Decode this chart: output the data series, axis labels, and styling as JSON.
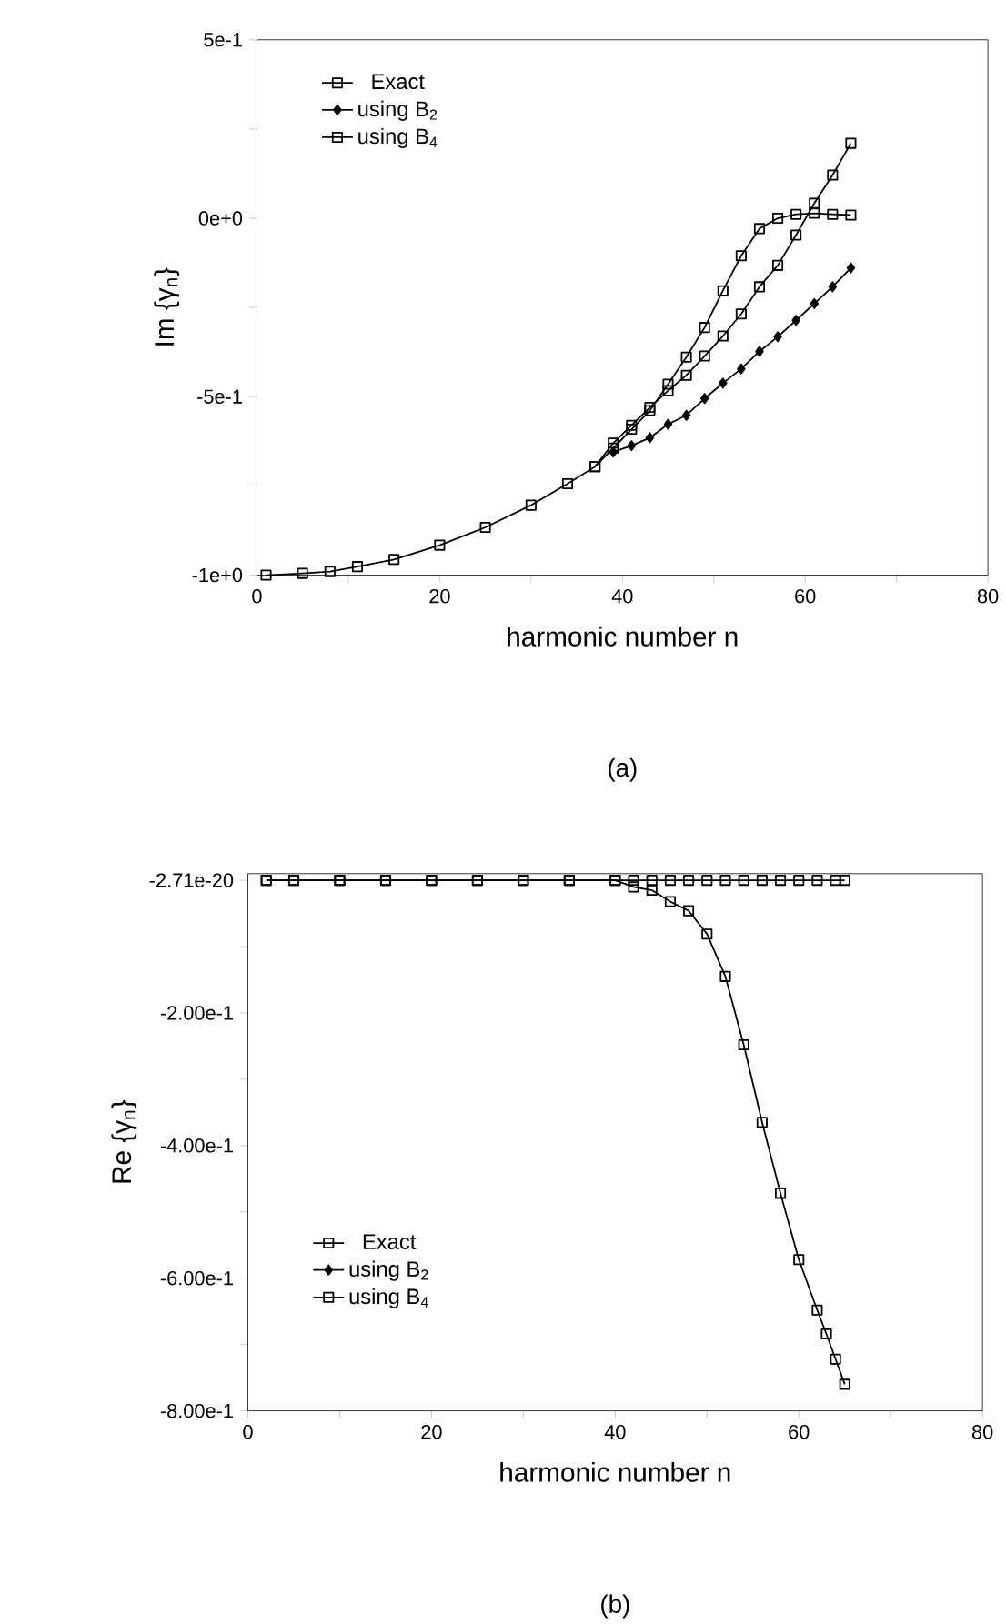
{
  "chart_data": [
    {
      "type": "line",
      "xlabel": "harmonic number n",
      "ylabel": "Im {γ$_{n}$}",
      "annotations": [
        "(a)"
      ],
      "xlim": [
        0,
        80
      ],
      "xticks": [
        0,
        {
          "value": 10,
          "label": null
        },
        20,
        {
          "value": 30,
          "label": null
        },
        40,
        {
          "value": 50,
          "label": null
        },
        60,
        {
          "value": 70,
          "label": null
        },
        80
      ],
      "ylim": [
        -1.0,
        0.5
      ],
      "yticks": [
        {
          "value": -1.0,
          "label": "-1e+0"
        },
        {
          "value": -0.75,
          "label": null
        },
        {
          "value": -0.5,
          "label": "-5e-1"
        },
        {
          "value": -0.25,
          "label": null
        },
        {
          "value": 0,
          "label": "0e+0"
        },
        {
          "value": 0.25,
          "label": null
        },
        {
          "value": 0.5,
          "label": "5e-1"
        }
      ],
      "legend": "top left",
      "series": [
        {
          "name": "Exact",
          "color": "#000000",
          "marker": "square",
          "x": [
            1,
            5,
            8,
            11,
            15,
            20,
            25,
            30,
            34,
            37,
            39,
            41,
            43,
            45,
            47,
            49,
            51,
            53,
            55,
            57,
            59,
            61,
            63,
            65
          ],
          "values": [
            -1.0,
            -0.995,
            -0.99,
            -0.976,
            -0.956,
            -0.916,
            -0.866,
            -0.804,
            -0.744,
            -0.696,
            -0.644,
            -0.591,
            -0.539,
            -0.465,
            -0.389,
            -0.306,
            -0.203,
            -0.105,
            -0.029,
            0.0,
            0.011,
            0.014,
            0.011,
            0.009
          ]
        },
        {
          "name": "using B$_{2}$",
          "color": "#000000",
          "marker": "diamond",
          "x": [
            39,
            41,
            43,
            45,
            47,
            49,
            51,
            53,
            55,
            57,
            59,
            61,
            63,
            65
          ],
          "values": [
            -0.655,
            -0.637,
            -0.615,
            -0.577,
            -0.552,
            -0.505,
            -0.462,
            -0.422,
            -0.373,
            -0.332,
            -0.286,
            -0.239,
            -0.192,
            -0.139
          ]
        },
        {
          "name": "using B$_{4}$",
          "color": "#000000",
          "marker": "square",
          "x": [
            37,
            39,
            41,
            43,
            45,
            47,
            49,
            51,
            53,
            55,
            57,
            59,
            61,
            63,
            65
          ],
          "values": [
            -0.696,
            -0.63,
            -0.58,
            -0.53,
            -0.483,
            -0.44,
            -0.386,
            -0.33,
            -0.268,
            -0.192,
            -0.132,
            -0.047,
            0.042,
            0.121,
            0.21
          ]
        }
      ]
    },
    {
      "type": "line",
      "xlabel": "harmonic number n",
      "ylabel": "Re {γ$_{n}$}",
      "annotations": [
        "(b)"
      ],
      "xlim": [
        0,
        80
      ],
      "xticks": [
        0,
        {
          "value": 10,
          "label": null
        },
        20,
        {
          "value": 30,
          "label": null
        },
        40,
        {
          "value": 50,
          "label": null
        },
        60,
        {
          "value": 70,
          "label": null
        },
        80
      ],
      "ylim": [
        -0.8,
        0.01
      ],
      "yticks": [
        {
          "value": -0.8,
          "label": "-8.00e-1"
        },
        {
          "value": -0.7,
          "label": null
        },
        {
          "value": -0.6,
          "label": "-6.00e-1"
        },
        {
          "value": -0.5,
          "label": null
        },
        {
          "value": -0.4,
          "label": "-4.00e-1"
        },
        {
          "value": -0.3,
          "label": null
        },
        {
          "value": -0.2,
          "label": "-2.00e-1"
        },
        {
          "value": -0.1,
          "label": null
        },
        {
          "value": -2.71e-20,
          "label": "-2.71e-20"
        }
      ],
      "legend": "bottom left",
      "series": [
        {
          "name": "Exact",
          "color": "#000000",
          "marker": "square",
          "x": [
            2,
            5,
            10,
            15,
            20,
            25,
            30,
            35,
            40,
            42,
            44,
            46,
            48,
            50,
            52,
            54,
            56,
            58,
            60,
            62,
            64,
            65
          ],
          "values": [
            0,
            0,
            0,
            0,
            0,
            0,
            0,
            0,
            0,
            0,
            0,
            0,
            0,
            0,
            0,
            0,
            0,
            0,
            0,
            0,
            0,
            0
          ]
        },
        {
          "name": "using B$_{2}$",
          "color": "#000000",
          "marker": "diamond"
        },
        {
          "name": "using B$_{4}$",
          "color": "#000000",
          "marker": "square",
          "x": [
            2,
            5,
            10,
            15,
            20,
            25,
            30,
            35,
            40,
            42,
            44,
            46,
            48,
            50,
            52,
            54,
            56,
            58,
            60,
            62,
            63,
            64,
            65
          ],
          "values": [
            0,
            0,
            0,
            0,
            0,
            0,
            0,
            0,
            0,
            -0.01,
            -0.015,
            -0.032,
            -0.046,
            -0.081,
            -0.145,
            -0.248,
            -0.365,
            -0.472,
            -0.572,
            -0.648,
            -0.684,
            -0.722,
            -0.76
          ]
        }
      ]
    }
  ]
}
